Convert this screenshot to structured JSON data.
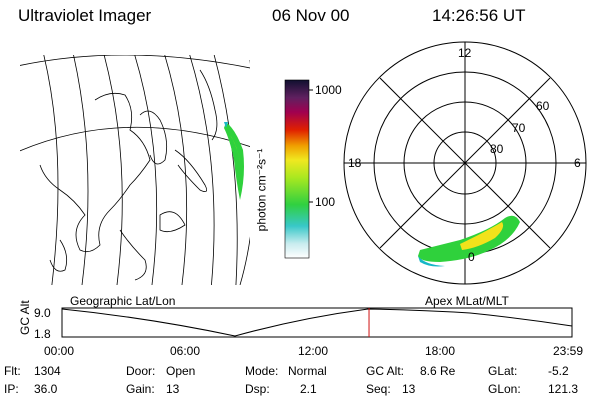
{
  "header": {
    "instrument": "Ultraviolet Imager",
    "date": "06 Nov 00",
    "time": "14:26:56 UT"
  },
  "colorbar": {
    "unit_label": "photon cm⁻²s⁻¹",
    "ticks": [
      "1000",
      "100"
    ]
  },
  "left_panel": {
    "label": "Geographic Lat/Lon"
  },
  "right_panel": {
    "label": "Apex MLat/MLT",
    "mlt_labels": [
      "12",
      "18",
      "6",
      "0"
    ],
    "mlat_labels": [
      "60",
      "70",
      "80"
    ]
  },
  "altitude_plot": {
    "ylabel": "GC Alt",
    "yticks": [
      "9.0",
      "1.8"
    ],
    "xticks": [
      "00:00",
      "06:00",
      "12:00",
      "18:00",
      "23:59"
    ],
    "current_time_fraction": 0.602
  },
  "info": {
    "flt_label": "Flt:",
    "flt_value": "1304",
    "ip_label": "IP:",
    "ip_value": "36.0",
    "door_label": "Door:",
    "door_value": "Open",
    "gain_label": "Gain:",
    "gain_value": "13",
    "mode_label": "Mode:",
    "mode_value": "Normal",
    "dsp_label": "Dsp:",
    "dsp_value": "2.1",
    "gcalt_label": "GC Alt:",
    "gcalt_value": "8.6 Re",
    "seq_label": "Seq:",
    "seq_value": "13",
    "glat_label": "GLat:",
    "glat_value": "-5.2",
    "glon_label": "GLon:",
    "glon_value": "121.3"
  }
}
